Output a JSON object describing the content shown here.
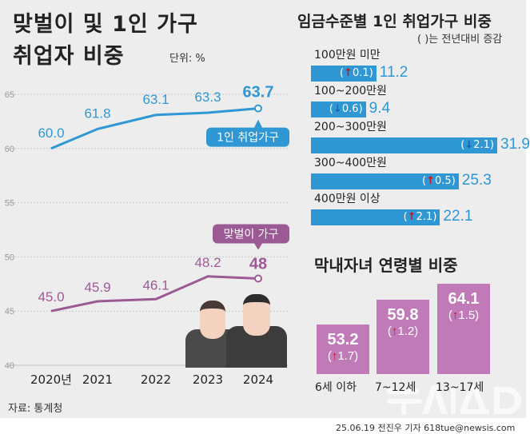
{
  "left_title": [
    "맞벌이 및 1인 가구",
    "취업자 비중"
  ],
  "unit": "단위: %",
  "source": "자료: 통계청",
  "credit": "25.06.19 전진우 기자 618tue@newsis.com",
  "watermark": "뉴시스",
  "colors": {
    "single": "#2f97d4",
    "dual": "#9b5a93",
    "age_bar": "#c17ab8",
    "up": "#d1121b",
    "down": "#1466a8"
  },
  "chart_data": [
    {
      "type": "line",
      "x": [
        "2020년",
        "2021",
        "2022",
        "2023",
        "2024"
      ],
      "ylim": [
        40,
        65
      ],
      "yticks": [
        40,
        45,
        50,
        55,
        60,
        65
      ],
      "series": [
        {
          "name": "1인 취업가구",
          "values": [
            60.0,
            61.8,
            63.1,
            63.3,
            63.7
          ],
          "labels": [
            "60.0",
            "61.8",
            "63.1",
            "63.3",
            "63.7"
          ]
        },
        {
          "name": "맞벌이 가구",
          "values": [
            45.0,
            45.9,
            46.1,
            48.2,
            48
          ],
          "labels": [
            "45.0",
            "45.9",
            "46.1",
            "48.2",
            "48"
          ]
        }
      ]
    },
    {
      "type": "bar",
      "orientation": "horizontal",
      "title": "임금수준별 1인 취업가구 비중",
      "note": "( )는 전년대비 증감",
      "categories": [
        "100만원 미만",
        "100~200만원",
        "200~300만원",
        "300~400만원",
        "400만원 이상"
      ],
      "values": [
        11.2,
        9.4,
        31.9,
        25.3,
        22.1
      ],
      "value_labels": [
        "11.2",
        "9.4",
        "31.9",
        "25.3",
        "22.1"
      ],
      "changes": [
        {
          "dir": "up",
          "text": "0.1"
        },
        {
          "dir": "down",
          "text": "0.6"
        },
        {
          "dir": "down",
          "text": "2.1"
        },
        {
          "dir": "up",
          "text": "0.5"
        },
        {
          "dir": "up",
          "text": "2.1"
        }
      ]
    },
    {
      "type": "bar",
      "orientation": "vertical",
      "title": "막내자녀 연령별 비중",
      "categories": [
        "6세 이하",
        "7~12세",
        "13~17세"
      ],
      "values": [
        53.2,
        59.8,
        64.1
      ],
      "value_labels": [
        "53.2",
        "59.8",
        "64.1"
      ],
      "changes": [
        {
          "dir": "up",
          "text": "1.7"
        },
        {
          "dir": "up",
          "text": "1.2"
        },
        {
          "dir": "up",
          "text": "1.5"
        }
      ]
    }
  ]
}
